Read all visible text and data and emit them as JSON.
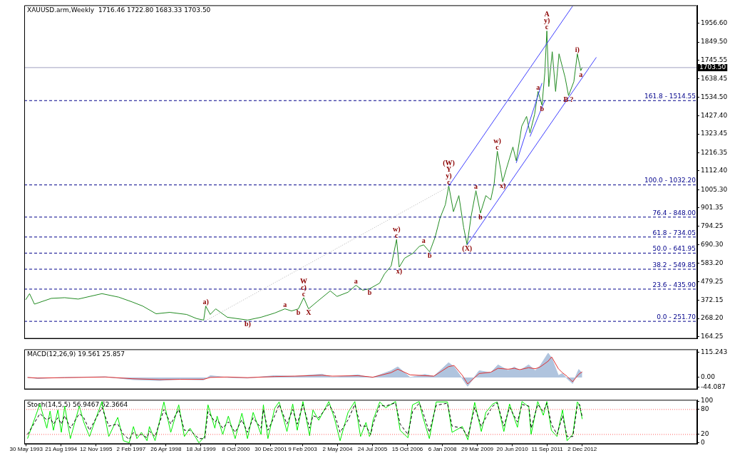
{
  "chart_data": [
    {
      "type": "line",
      "title": "XAUUSD.arm,Weekly  1716.46 1722.80 1683.33 1703.50",
      "marker": "none",
      "tick_labels": "y",
      "xlim": [
        "1993-05-05",
        "2016-12-15"
      ],
      "ylim": [
        152,
        2060
      ],
      "yticks": [
        {
          "value": 164.25,
          "label": "164.25"
        },
        {
          "value": 268.2,
          "label": "268.20"
        },
        {
          "value": 372.15,
          "label": "372.15"
        },
        {
          "value": 479.25,
          "label": "479.25"
        },
        {
          "value": 583.2,
          "label": "583.20"
        },
        {
          "value": 690.3,
          "label": "690.30"
        },
        {
          "value": 794.25,
          "label": "794.25"
        },
        {
          "value": 901.35,
          "label": "901.35"
        },
        {
          "value": 1005.3,
          "label": "1005.30"
        },
        {
          "value": 1112.4,
          "label": "1112.40"
        },
        {
          "value": 1216.35,
          "label": "1216.35"
        },
        {
          "value": 1323.45,
          "label": "1323.45"
        },
        {
          "value": 1427.4,
          "label": "1427.40"
        },
        {
          "value": 1534.5,
          "label": "1534.50"
        },
        {
          "value": 1638.45,
          "label": "1638.45"
        },
        {
          "value": 1745.55,
          "label": "1745.55"
        },
        {
          "value": 1849.5,
          "label": "1849.50"
        },
        {
          "value": 1956.6,
          "label": "1956.60"
        }
      ],
      "series": [
        {
          "color": "#228b22",
          "x": [
            "1993-05-23",
            "1993-07-12",
            "1993-09-13",
            "1994-04-16",
            "1994-10-05",
            "1995-03-28",
            "1996-01-26",
            "1996-08-28",
            "1997-02-20",
            "1997-07-01",
            "1997-12-20",
            "1998-06-13",
            "1999-01-15",
            "1999-05-26",
            "1999-08-22",
            "1999-09-17",
            "1999-11-14",
            "2000-01-23",
            "2000-06-20",
            "2001-03-07",
            "2001-08-26",
            "2002-02-16",
            "2002-06-28",
            "2002-09-21",
            "2002-12-17",
            "2003-02-24",
            "2003-04-27",
            "2003-08-08",
            "2004-01-30",
            "2004-04-26",
            "2004-09-12",
            "2004-12-24",
            "2005-03-21",
            "2005-06-17",
            "2005-10-23",
            "2005-12-24",
            "2006-03-21",
            "2006-05-29",
            "2006-07-02",
            "2006-09-09",
            "2006-12-24",
            "2007-03-18",
            "2007-05-11",
            "2007-07-27",
            "2007-10-04",
            "2007-12-05",
            "2008-02-13",
            "2008-03-28",
            "2008-05-27",
            "2008-08-04",
            "2008-10-05",
            "2008-11-18",
            "2009-01-08",
            "2009-03-11",
            "2009-05-08",
            "2009-07-16",
            "2009-09-17",
            "2009-10-30",
            "2009-12-10",
            "2010-01-23",
            "2010-02-17",
            "2010-04-01",
            "2010-06-28",
            "2010-08-10",
            "2010-10-19",
            "2010-12-20",
            "2011-02-02",
            "2011-04-02",
            "2011-05-16",
            "2011-07-06",
            "2011-08-11",
            "2011-09-06",
            "2011-10-01",
            "2011-11-14",
            "2011-12-27",
            "2012-02-09",
            "2012-04-27",
            "2012-06-10",
            "2012-08-17",
            "2012-10-01",
            "2012-11-14",
            "2012-12-02"
          ],
          "values": [
            375,
            410,
            350,
            383,
            387,
            379,
            410,
            390,
            362,
            339,
            295,
            303,
            291,
            267,
            259,
            339,
            291,
            323,
            275,
            259,
            275,
            299,
            323,
            311,
            323,
            387,
            323,
            362,
            426,
            394,
            418,
            458,
            430,
            438,
            470,
            522,
            569,
            720,
            562,
            613,
            641,
            681,
            689,
            649,
            732,
            840,
            919,
            1026,
            879,
            971,
            788,
            689,
            852,
            999,
            871,
            971,
            947,
            1038,
            1225,
            1118,
            1050,
            1118,
            1249,
            1170,
            1368,
            1424,
            1329,
            1436,
            1567,
            1488,
            1674,
            1913,
            1595,
            1794,
            1567,
            1782,
            1647,
            1543,
            1623,
            1782,
            1686,
            1703.5
          ]
        },
        {
          "color": "#4040ff",
          "x": [
            "2008-03-28",
            "2012-08-01"
          ],
          "values": [
            1026,
            2055
          ]
        },
        {
          "color": "#4040ff",
          "x": [
            "2008-11-18",
            "2013-06-01"
          ],
          "values": [
            689,
            1762
          ]
        },
        {
          "color": "#4040ff",
          "x": [
            "2010-08-10",
            "2011-07-06"
          ],
          "values": [
            1158,
            1615
          ]
        },
        {
          "color": "#4040ff",
          "x": [
            "2011-02-02",
            "2011-08-11"
          ],
          "values": [
            1309,
            1515
          ]
        },
        {
          "color": "#b0b0b0",
          "line_style": "dotted",
          "x": [
            "1999-09-17",
            "2008-03-28"
          ],
          "values": [
            255,
            1023
          ]
        }
      ],
      "ref_lines": [
        {
          "axis": "y",
          "value": 1514.55,
          "color": "#00008b",
          "line_style": "dashed"
        },
        {
          "axis": "y",
          "value": 1032.2,
          "color": "#00008b",
          "line_style": "dashed"
        },
        {
          "axis": "y",
          "value": 848,
          "color": "#00008b",
          "line_style": "dashed"
        },
        {
          "axis": "y",
          "value": 734.05,
          "color": "#00008b",
          "line_style": "dashed"
        },
        {
          "axis": "y",
          "value": 641.95,
          "color": "#00008b",
          "line_style": "dashed"
        },
        {
          "axis": "y",
          "value": 549.85,
          "color": "#00008b",
          "line_style": "dashed"
        },
        {
          "axis": "y",
          "value": 435.9,
          "color": "#00008b",
          "line_style": "dashed"
        },
        {
          "axis": "y",
          "value": 251.7,
          "color": "#00008b",
          "line_style": "dashed"
        },
        {
          "axis": "y",
          "value": 1703.5,
          "label": "1703.50",
          "color": "#a0a0c0",
          "line_style": "solid"
        }
      ],
      "annotations": [
        {
          "text": "161.8 - 1514.55",
          "y": 1514.55
        },
        {
          "text": "100.0 - 1032.20",
          "y": 1032.2
        },
        {
          "text": "76.4 - 848.00",
          "y": 848
        },
        {
          "text": "61.8 - 734.05",
          "y": 734.05
        },
        {
          "text": "50.0 - 641.95",
          "y": 641.95
        },
        {
          "text": "38.2 - 549.85",
          "y": 549.85
        },
        {
          "text": "23.6 - 435.90",
          "y": 435.9
        },
        {
          "text": "0.0 - 251.70",
          "y": 251.7
        },
        {
          "text": "a)",
          "x": "1999-09-17",
          "y": 339
        },
        {
          "text": "b)",
          "x": "2001-03-07",
          "y": 259
        },
        {
          "text": "a",
          "x": "2002-06-28",
          "y": 323
        },
        {
          "text": "b",
          "x": "2002-12-17",
          "y": 323
        },
        {
          "text": "W",
          "x": "2003-02-24",
          "y": 387
        },
        {
          "text": "c)",
          "x": "2003-02-24",
          "y": 387
        },
        {
          "text": "c",
          "x": "2003-02-24",
          "y": 387
        },
        {
          "text": "X",
          "x": "2003-04-27",
          "y": 323
        },
        {
          "text": "a",
          "x": "2004-12-24",
          "y": 458
        },
        {
          "text": "b",
          "x": "2005-06-17",
          "y": 438
        },
        {
          "text": "w)",
          "x": "2006-05-29",
          "y": 720
        },
        {
          "text": "c",
          "x": "2006-05-29",
          "y": 720
        },
        {
          "text": "x)",
          "x": "2006-07-02",
          "y": 562
        },
        {
          "text": "a",
          "x": "2007-05-11",
          "y": 689
        },
        {
          "text": "b",
          "x": "2007-07-27",
          "y": 649
        },
        {
          "text": "(W)",
          "x": "2008-03-28",
          "y": 1026
        },
        {
          "text": "Y",
          "x": "2008-03-28",
          "y": 1026
        },
        {
          "text": "y)",
          "x": "2008-03-28",
          "y": 1026
        },
        {
          "text": "c",
          "x": "2008-03-28",
          "y": 1026
        },
        {
          "text": "a",
          "x": "2009-03-11",
          "y": 999
        },
        {
          "text": "(X)",
          "x": "2008-11-18",
          "y": 689
        },
        {
          "text": "b",
          "x": "2009-05-08",
          "y": 871
        },
        {
          "text": "w)",
          "x": "2009-12-10",
          "y": 1225
        },
        {
          "text": "c",
          "x": "2009-12-10",
          "y": 1225
        },
        {
          "text": "x)",
          "x": "2010-02-17",
          "y": 1050
        },
        {
          "text": "a",
          "x": "2011-05-16",
          "y": 1567
        },
        {
          "text": "b",
          "x": "2011-07-06",
          "y": 1488
        },
        {
          "text": "A",
          "x": "2011-09-06",
          "y": 1913
        },
        {
          "text": "y)",
          "x": "2011-09-06",
          "y": 1913
        },
        {
          "text": "c",
          "x": "2011-09-06",
          "y": 1913
        },
        {
          "text": "i)",
          "x": "2012-10-01",
          "y": 1782
        },
        {
          "text": "a",
          "x": "2012-11-14",
          "y": 1686
        },
        {
          "text": "B ?",
          "x": "2012-06-10",
          "y": 1543
        }
      ]
    },
    {
      "type": "line",
      "title": "MACD(12,26,9) 19.561 25.857",
      "marker": "none",
      "tick_labels": "y",
      "xlim": [
        "1993-05-05",
        "2016-12-15"
      ],
      "ylim": [
        -55,
        130
      ],
      "yticks": [
        -44.087,
        {
          "value": 0,
          "label": "0.00"
        },
        115.243
      ],
      "x": [
        "1993-06-16",
        "1993-10-24",
        "1994-10-06",
        "1996-03-09",
        "1997-02-21",
        "1998-02-03",
        "1998-10-20",
        "1999-08-19",
        "1999-11-15",
        "2000-06-19",
        "2001-03-05",
        "2002-02-17",
        "2002-11-04",
        "2003-10-16",
        "2004-02-25",
        "2005-01-19",
        "2005-06-15",
        "2005-07-28",
        "2006-03-19",
        "2006-06-14",
        "2006-11-18",
        "2007-05-27",
        "2007-09-19",
        "2008-03-26",
        "2008-06-04",
        "2008-09-17",
        "2008-11-25",
        "2009-04-21",
        "2009-09-17",
        "2009-12-19",
        "2010-04-28",
        "2010-07-16",
        "2010-09-24",
        "2011-01-16",
        "2011-04-11",
        "2011-06-10",
        "2011-09-23",
        "2011-11-06",
        "2012-02-01",
        "2012-03-23",
        "2012-05-22",
        "2012-08-01",
        "2012-10-19",
        "2012-12-02"
      ],
      "series": [
        {
          "type": "area",
          "color": "#b0c4de",
          "values": [
            0,
            -5,
            0,
            3,
            -10,
            -14,
            -8,
            -11,
            8,
            0,
            -3,
            8,
            5,
            15,
            0,
            12,
            0,
            0,
            31,
            49,
            0,
            14,
            5,
            68,
            49,
            -5,
            -41,
            31,
            22,
            58,
            32,
            48,
            32,
            58,
            31,
            53,
            112,
            90,
            9,
            18,
            -5,
            -28,
            37,
            19.561
          ]
        },
        {
          "type": "line",
          "color": "#e03030",
          "values": [
            0,
            -3,
            -1,
            2,
            -6,
            -10,
            -9,
            -9,
            0,
            2,
            -1,
            4,
            6,
            10,
            6,
            8,
            3,
            1,
            22,
            38,
            12,
            8,
            6,
            50,
            55,
            10,
            -30,
            18,
            24,
            42,
            38,
            42,
            36,
            45,
            40,
            48,
            75,
            95,
            40,
            22,
            5,
            -20,
            15,
            25.857
          ]
        }
      ]
    },
    {
      "type": "line",
      "title": "Stoch(14,5,5) 56.9467 62.3664",
      "marker": "none",
      "xlim": [
        "1993-05-05",
        "2016-12-15"
      ],
      "xticks": [
        {
          "value": "1993-05-30",
          "label": "30 May 1993"
        },
        {
          "value": "1994-08-21",
          "label": "21 Aug 1994"
        },
        {
          "value": "1995-11-12",
          "label": "12 Nov 1995"
        },
        {
          "value": "1997-02-02",
          "label": "2 Feb 1997"
        },
        {
          "value": "1998-04-26",
          "label": "26 Apr 1998"
        },
        {
          "value": "1999-07-18",
          "label": "18 Jul 1999"
        },
        {
          "value": "2000-10-08",
          "label": "8 Oct 2000"
        },
        {
          "value": "2001-12-30",
          "label": "30 Dec 2001"
        },
        {
          "value": "2003-02-09",
          "label": "9 Feb 2003"
        },
        {
          "value": "2004-05-02",
          "label": "2 May 2004"
        },
        {
          "value": "2005-07-24",
          "label": "24 Jul 2005"
        },
        {
          "value": "2006-10-15",
          "label": "15 Oct 2006"
        },
        {
          "value": "2008-01-06",
          "label": "6 Jan 2008"
        },
        {
          "value": "2009-03-29",
          "label": "29 Mar 2009"
        },
        {
          "value": "2010-06-20",
          "label": "20 Jun 2010"
        },
        {
          "value": "2011-09-11",
          "label": "11 Sep 2011"
        },
        {
          "value": "2012-12-02",
          "label": "2 Dec 2012"
        }
      ],
      "ylim": [
        -3,
        103
      ],
      "yticks": [
        0,
        20,
        80,
        100
      ],
      "x": [
        "1993-06-16",
        "1993-11-22",
        "1994-02-18",
        "1994-04-01",
        "1994-05-14",
        "1994-07-10",
        "1994-08-23",
        "1994-10-06",
        "1994-12-17",
        "1995-04-11",
        "1995-06-08",
        "1995-08-19",
        "1996-01-26",
        "1996-04-22",
        "1996-08-16",
        "1996-10-27",
        "1997-01-09",
        "1997-03-05",
        "1997-04-18",
        "1997-06-15",
        "1997-08-26",
        "1997-09-25",
        "1997-12-07",
        "1998-03-30",
        "1998-06-26",
        "1998-10-06",
        "1998-12-17",
        "1999-02-28",
        "1999-06-22",
        "1999-09-04",
        "1999-10-16",
        "2000-01-12",
        "2000-02-10",
        "2000-04-22",
        "2000-07-03",
        "2000-09-28",
        "2000-12-24",
        "2001-03-05",
        "2001-05-17",
        "2001-08-26",
        "2001-09-25",
        "2001-11-22",
        "2002-02-17",
        "2002-04-15",
        "2002-07-24",
        "2002-10-06",
        "2002-12-03",
        "2003-02-14",
        "2003-05-10",
        "2003-06-22",
        "2003-09-04",
        "2004-01-12",
        "2004-03-23",
        "2004-06-04",
        "2004-09-14",
        "2004-12-10",
        "2005-02-21",
        "2005-05-02",
        "2005-06-15",
        "2005-07-02",
        "2005-07-31",
        "2005-10-26",
        "2006-01-08",
        "2006-05-16",
        "2006-07-13",
        "2006-10-22",
        "2006-12-19",
        "2007-03-15",
        "2007-04-28",
        "2007-07-23",
        "2007-10-19",
        "2008-03-11",
        "2008-05-09",
        "2008-09-17",
        "2008-11-28",
        "2009-02-23",
        "2009-05-19",
        "2009-07-16",
        "2009-10-12",
        "2009-12-09",
        "2010-03-04",
        "2010-05-16",
        "2010-08-25",
        "2010-10-22",
        "2011-01-18",
        "2011-02-16",
        "2011-05-12",
        "2011-07-23",
        "2011-09-06",
        "2011-11-03",
        "2012-01-14",
        "2012-03-25",
        "2012-05-22",
        "2012-08-04",
        "2012-10-01",
        "2012-10-29",
        "2012-12-02"
      ],
      "series": [
        {
          "color": "#00ee00",
          "values": [
            10,
            93,
            35,
            76,
            30,
            79,
            25,
            88,
            10,
            88,
            49,
            15,
            99,
            15,
            61,
            5,
            0,
            39,
            10,
            25,
            5,
            39,
            5,
            98,
            25,
            91,
            15,
            35,
            0,
            15,
            91,
            35,
            64,
            20,
            64,
            10,
            71,
            10,
            73,
            20,
            91,
            10,
            83,
            98,
            27,
            93,
            30,
            99,
            17,
            79,
            54,
            99,
            59,
            5,
            73,
            99,
            15,
            49,
            15,
            22,
            54,
            98,
            84,
            99,
            30,
            12,
            91,
            99,
            64,
            10,
            98,
            98,
            25,
            39,
            7,
            97,
            27,
            73,
            93,
            98,
            27,
            93,
            37,
            99,
            86,
            20,
            99,
            66,
            99,
            30,
            15,
            79,
            5,
            20,
            98,
            91,
            56.9467
          ]
        },
        {
          "color": "#000000",
          "line_style": "dashed",
          "values": [
            20,
            70,
            55,
            60,
            45,
            60,
            45,
            65,
            35,
            70,
            60,
            30,
            85,
            40,
            45,
            20,
            8,
            25,
            18,
            20,
            12,
            28,
            15,
            80,
            45,
            80,
            30,
            30,
            10,
            10,
            75,
            50,
            55,
            35,
            50,
            25,
            55,
            25,
            60,
            35,
            80,
            30,
            65,
            92,
            45,
            80,
            45,
            92,
            35,
            65,
            60,
            92,
            70,
            25,
            55,
            92,
            40,
            40,
            25,
            20,
            45,
            90,
            88,
            96,
            45,
            20,
            75,
            95,
            75,
            25,
            90,
            95,
            40,
            35,
            15,
            85,
            40,
            60,
            88,
            96,
            40,
            85,
            50,
            92,
            88,
            35,
            92,
            75,
            95,
            45,
            20,
            65,
            15,
            15,
            90,
            92,
            62.3664
          ]
        }
      ],
      "ref_lines": [
        {
          "axis": "y",
          "value": 80,
          "color": "#ff6060",
          "line_style": "dotted"
        },
        {
          "axis": "y",
          "value": 20,
          "color": "#ff6060",
          "line_style": "dotted"
        }
      ]
    }
  ]
}
